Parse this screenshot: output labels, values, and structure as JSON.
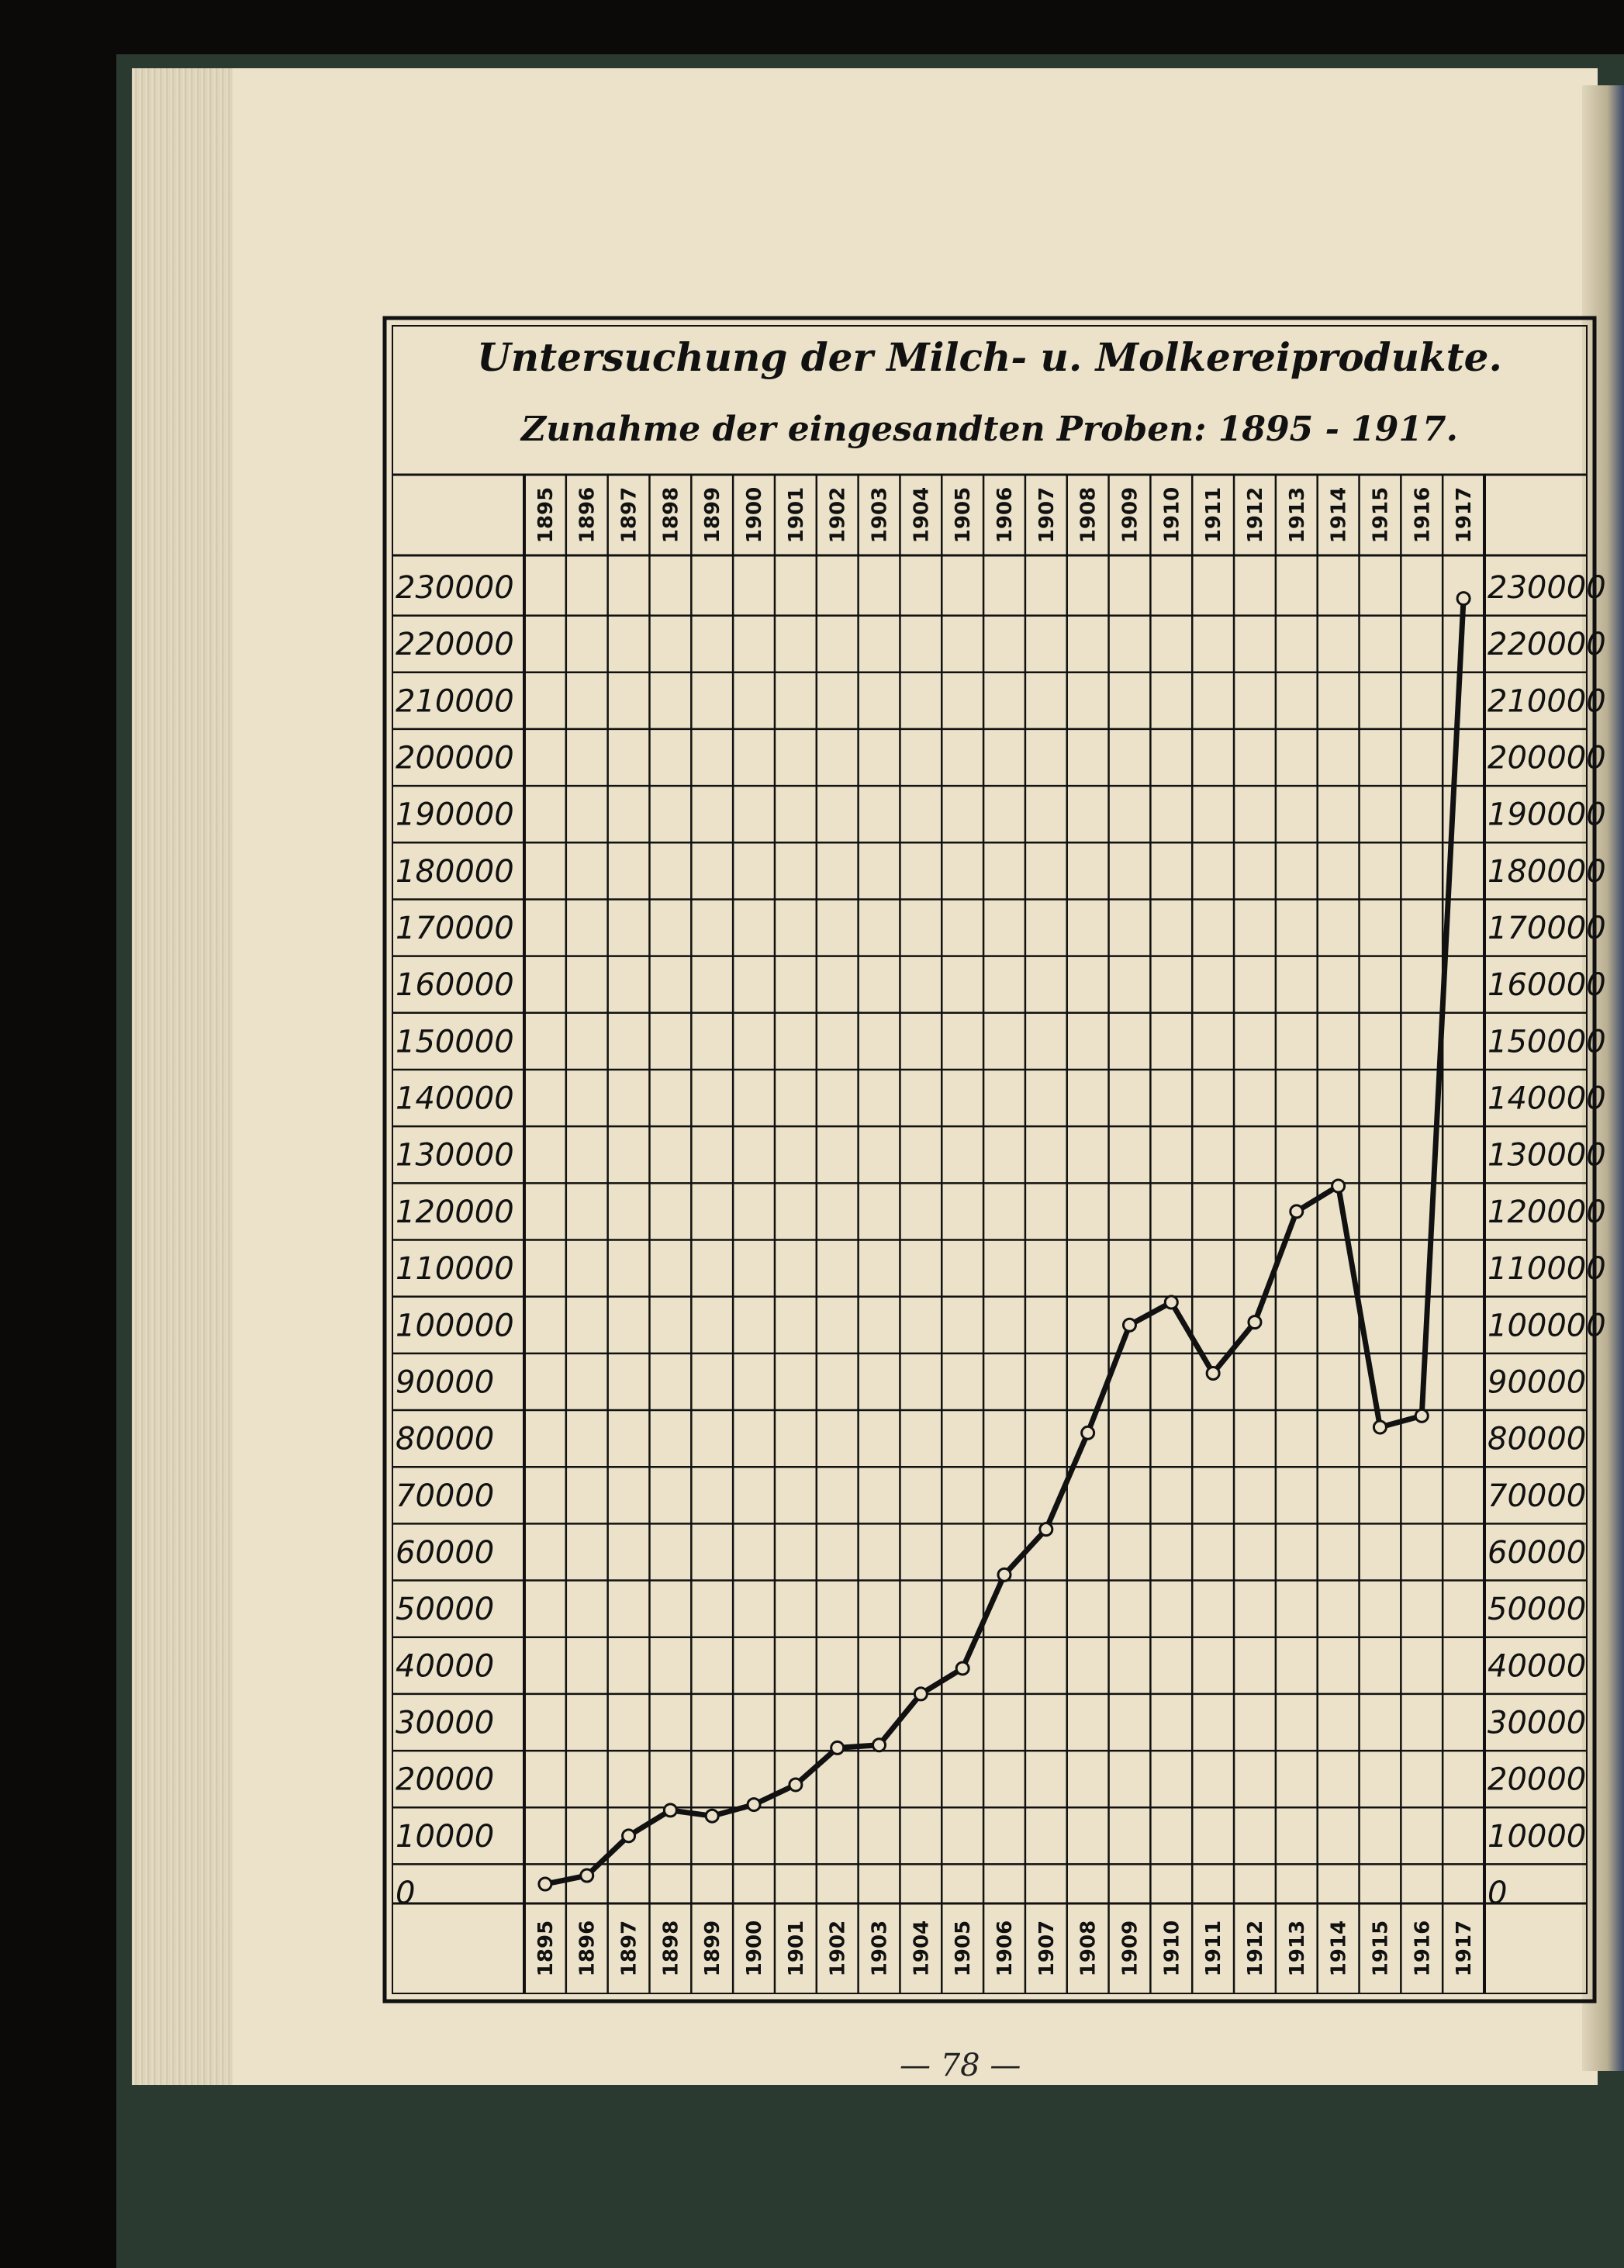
{
  "chart_data": {
    "type": "line",
    "title": "Untersuchung der Milch- u. Molkereiprodukte.",
    "subtitle": "Zunahme der eingesandten Proben: 1895 - 1917.",
    "categories": [
      "1895",
      "1896",
      "1897",
      "1898",
      "1899",
      "1900",
      "1901",
      "1902",
      "1903",
      "1904",
      "1905",
      "1906",
      "1907",
      "1908",
      "1909",
      "1910",
      "1911",
      "1912",
      "1913",
      "1914",
      "1915",
      "1916",
      "1917"
    ],
    "series": [
      {
        "values": [
          1500,
          3000,
          10000,
          14500,
          13500,
          15500,
          19000,
          25500,
          26000,
          35000,
          39500,
          56000,
          64000,
          81000,
          100000,
          104000,
          91500,
          100500,
          120000,
          124500,
          82000,
          84000,
          228000
        ]
      }
    ],
    "y_tick_labels": [
      "230000",
      "220000",
      "210000",
      "200000",
      "190000",
      "180000",
      "170000",
      "160000",
      "150000",
      "140000",
      "130000",
      "120000",
      "110000",
      "100000",
      "90000",
      "80000",
      "70000",
      "60000",
      "50000",
      "40000",
      "30000",
      "20000",
      "10000",
      "0"
    ],
    "ylim": [
      0,
      230000
    ],
    "grid": true,
    "line_color": "#111111",
    "marker": "open-circle",
    "paper_color": "#ebe2c9"
  },
  "page_number": "— 78 —"
}
